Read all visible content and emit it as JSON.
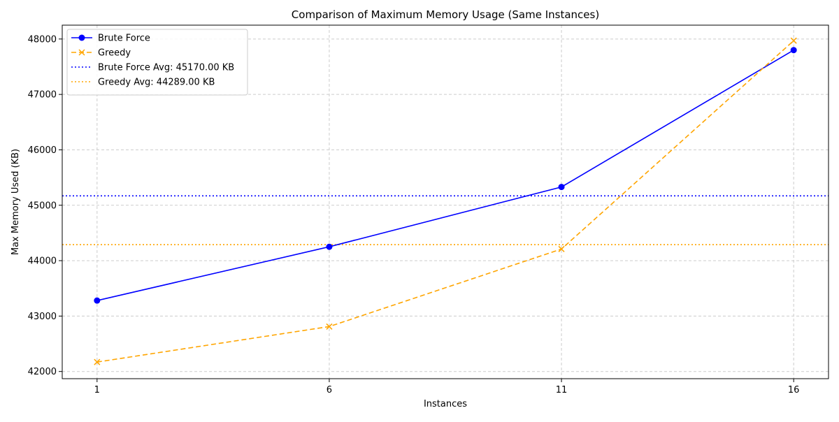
{
  "chart_data": {
    "type": "line",
    "title": "Comparison of Maximum Memory Usage (Same Instances)",
    "xlabel": "Instances",
    "ylabel": "Max Memory Used (KB)",
    "x": [
      1,
      6,
      11,
      16
    ],
    "xticks": [
      "1",
      "6",
      "11",
      "16"
    ],
    "xlim": [
      0.25,
      16.75
    ],
    "yticks": [
      "42000",
      "43000",
      "44000",
      "45000",
      "46000",
      "47000",
      "48000"
    ],
    "ylim": [
      41870,
      48250
    ],
    "grid": true,
    "legend_position": "top-left",
    "series": [
      {
        "name": "Brute Force",
        "values": [
          43280,
          44250,
          45330,
          47800
        ],
        "color": "#0000ff",
        "line_style": "solid",
        "marker": "circle"
      },
      {
        "name": "Greedy",
        "values": [
          42170,
          42810,
          44210,
          47970
        ],
        "color": "#ffa500",
        "line_style": "dashed",
        "marker": "x"
      }
    ],
    "reference_lines": [
      {
        "name": "Brute Force Avg: 45170.00 KB",
        "value": 45170,
        "color": "#0000ff",
        "line_style": "dotted"
      },
      {
        "name": "Greedy Avg: 44289.00 KB",
        "value": 44289,
        "color": "#ffa500",
        "line_style": "dotted"
      }
    ]
  }
}
